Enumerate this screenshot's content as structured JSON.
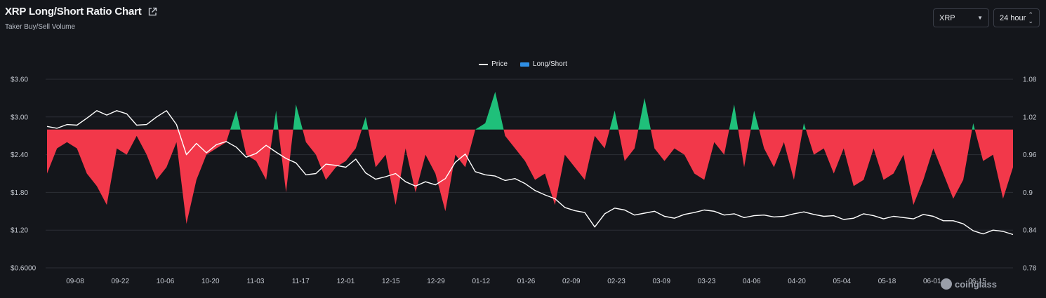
{
  "header": {
    "title": "XRP Long/Short Ratio Chart",
    "subtitle": "Taker Buy/Sell Volume",
    "symbol_select": "XRP",
    "interval_select": "24 hour"
  },
  "legend": {
    "price_label": "Price",
    "ratio_label": "Long/Short"
  },
  "watermark": "coinglass",
  "colors": {
    "background": "#14161b",
    "long": "#1fc07a",
    "short": "#f2384a",
    "price": "#ffffff",
    "ratio_legend": "#2f8fe5",
    "grid": "#2c2f36"
  },
  "icons": [
    "external-link-icon",
    "chevron-down-icon",
    "updown-icon",
    "coinglass-logo-icon"
  ],
  "chart_data": {
    "type": "area",
    "x_tick_labels": [
      "09-08",
      "09-22",
      "10-06",
      "10-20",
      "11-03",
      "11-17",
      "12-01",
      "12-15",
      "12-29",
      "01-12",
      "01-26",
      "02-09",
      "02-23",
      "03-09",
      "03-23",
      "04-06",
      "04-20",
      "05-04",
      "05-18",
      "06-01",
      "06-15"
    ],
    "left_axis": {
      "label": "",
      "ticks": [
        "$0.6000",
        "$1.20",
        "$1.80",
        "$2.40",
        "$3.00",
        "$3.60"
      ],
      "range": [
        0.6,
        3.6
      ]
    },
    "right_axis": {
      "label": "",
      "ticks": [
        "0.78",
        "0.84",
        "0.9",
        "0.96",
        "1.02",
        "1.08"
      ],
      "range": [
        0.78,
        1.08
      ]
    },
    "baseline": 1.0,
    "series": [
      {
        "name": "Price",
        "axis": "left",
        "x": [
          0,
          3,
          6,
          9,
          12,
          15,
          18,
          21,
          24,
          27,
          30,
          33,
          36,
          39,
          42,
          45,
          48,
          51,
          54,
          57,
          60,
          63,
          66,
          69,
          72,
          75,
          78,
          81,
          84,
          87,
          90,
          93,
          96,
          99,
          102,
          105,
          108,
          111,
          114,
          117,
          120,
          123,
          126,
          129,
          132,
          135,
          138,
          141,
          144,
          147,
          150,
          153,
          156,
          159,
          162,
          165,
          168,
          171,
          174,
          177,
          180,
          183,
          186,
          189,
          192,
          195,
          198,
          201,
          204,
          207,
          210,
          213,
          216,
          219,
          222,
          225,
          228,
          231,
          234,
          237,
          240,
          243,
          246,
          249,
          252,
          255,
          258,
          261,
          264,
          267,
          270,
          273,
          276,
          279,
          282,
          285,
          288,
          291
        ],
        "values": [
          2.85,
          2.82,
          2.88,
          2.87,
          2.98,
          3.1,
          3.03,
          3.1,
          3.05,
          2.87,
          2.88,
          3.0,
          3.1,
          2.88,
          2.4,
          2.58,
          2.43,
          2.56,
          2.61,
          2.52,
          2.36,
          2.42,
          2.55,
          2.44,
          2.34,
          2.27,
          2.08,
          2.1,
          2.25,
          2.23,
          2.2,
          2.33,
          2.11,
          2.01,
          2.05,
          2.1,
          1.97,
          1.9,
          1.97,
          1.92,
          2.02,
          2.28,
          2.41,
          2.13,
          2.08,
          2.06,
          1.99,
          2.02,
          1.94,
          1.83,
          1.76,
          1.7,
          1.56,
          1.51,
          1.48,
          1.25,
          1.46,
          1.55,
          1.52,
          1.44,
          1.47,
          1.5,
          1.42,
          1.39,
          1.45,
          1.48,
          1.52,
          1.5,
          1.44,
          1.46,
          1.4,
          1.43,
          1.44,
          1.41,
          1.42,
          1.46,
          1.49,
          1.45,
          1.42,
          1.43,
          1.37,
          1.39,
          1.46,
          1.43,
          1.38,
          1.42,
          1.4,
          1.38,
          1.45,
          1.42,
          1.35,
          1.35,
          1.3,
          1.19,
          1.14,
          1.2,
          1.18,
          1.13
        ]
      },
      {
        "name": "Long/Short",
        "axis": "right",
        "x": [
          0,
          3,
          6,
          9,
          12,
          15,
          18,
          21,
          24,
          27,
          30,
          33,
          36,
          39,
          42,
          45,
          48,
          51,
          54,
          57,
          60,
          63,
          66,
          69,
          72,
          75,
          78,
          81,
          84,
          87,
          90,
          93,
          96,
          99,
          102,
          105,
          108,
          111,
          114,
          117,
          120,
          123,
          126,
          129,
          132,
          135,
          138,
          141,
          144,
          147,
          150,
          153,
          156,
          159,
          162,
          165,
          168,
          171,
          174,
          177,
          180,
          183,
          186,
          189,
          192,
          195,
          198,
          201,
          204,
          207,
          210,
          213,
          216,
          219,
          222,
          225,
          228,
          231,
          234,
          237,
          240,
          243,
          246,
          249,
          252,
          255,
          258,
          261,
          264,
          267,
          270,
          273,
          276,
          279,
          282,
          285,
          288,
          291
        ],
        "values": [
          0.93,
          0.97,
          0.98,
          0.97,
          0.93,
          0.91,
          0.88,
          0.97,
          0.96,
          0.99,
          0.96,
          0.92,
          0.94,
          0.98,
          0.85,
          0.92,
          0.96,
          0.97,
          0.98,
          1.03,
          0.96,
          0.95,
          0.92,
          1.03,
          0.9,
          1.04,
          0.98,
          0.96,
          0.92,
          0.94,
          0.95,
          0.97,
          1.02,
          0.94,
          0.96,
          0.88,
          0.97,
          0.9,
          0.96,
          0.93,
          0.87,
          0.96,
          0.94,
          1.0,
          1.01,
          1.06,
          0.99,
          0.97,
          0.95,
          0.92,
          0.93,
          0.88,
          0.96,
          0.94,
          0.92,
          0.99,
          0.97,
          1.03,
          0.95,
          0.97,
          1.05,
          0.97,
          0.95,
          0.97,
          0.96,
          0.93,
          0.92,
          0.98,
          0.96,
          1.04,
          0.94,
          1.03,
          0.97,
          0.94,
          0.98,
          0.92,
          1.01,
          0.96,
          0.97,
          0.93,
          0.97,
          0.91,
          0.92,
          0.97,
          0.92,
          0.93,
          0.96,
          0.88,
          0.92,
          0.97,
          0.93,
          0.89,
          0.92,
          1.01,
          0.95,
          0.96,
          0.89,
          0.94
        ]
      }
    ]
  }
}
